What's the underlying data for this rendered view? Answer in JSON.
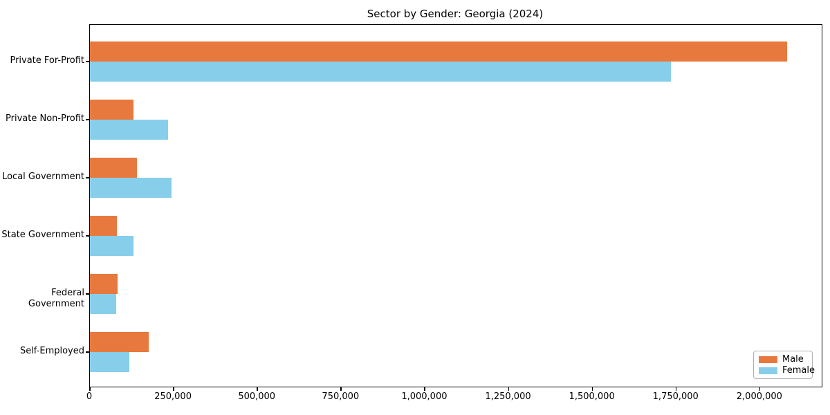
{
  "chart_data": {
    "type": "bar",
    "orientation": "horizontal",
    "title": "Sector by Gender: Georgia (2024)",
    "categories": [
      "Private For-Profit",
      "Private Non-Profit",
      "Local Government",
      "State Government",
      "Federal Government",
      "Self-Employed"
    ],
    "series": [
      {
        "name": "Male",
        "color": "#e8793e",
        "values": [
          2080000,
          130000,
          140000,
          80000,
          82000,
          176000
        ]
      },
      {
        "name": "Female",
        "color": "#87ceeb",
        "values": [
          1735000,
          233000,
          244000,
          131000,
          79000,
          118000
        ]
      }
    ],
    "xlabel": "",
    "ylabel": "",
    "xlim": [
      0,
      2184000
    ],
    "x_ticks": [
      0,
      250000,
      500000,
      750000,
      1000000,
      1250000,
      1500000,
      1750000,
      2000000
    ],
    "x_tick_labels": [
      "0",
      "250,000",
      "500,000",
      "750,000",
      "1,000,000",
      "1,250,000",
      "1,500,000",
      "1,750,000",
      "2,000,000"
    ],
    "grid": false,
    "legend_position": "lower right",
    "spine_color": "#000000",
    "background_color": "#ffffff"
  }
}
